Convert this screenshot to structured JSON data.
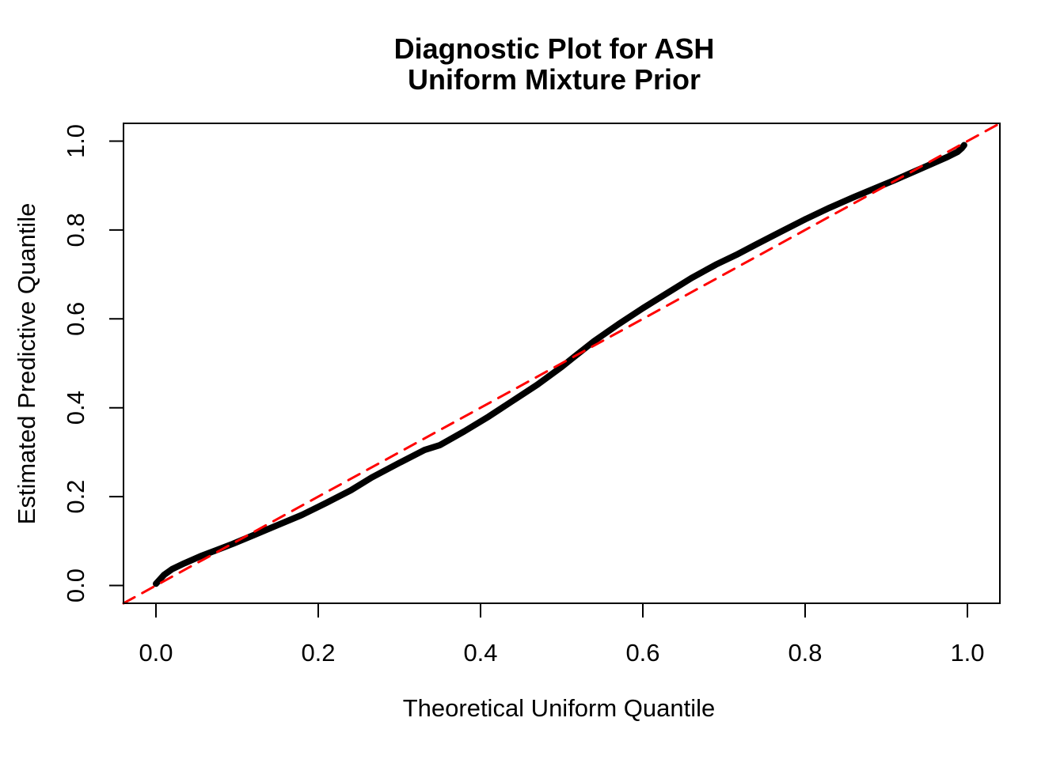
{
  "chart_data": {
    "type": "line",
    "title_lines": [
      "Diagnostic Plot for ASH",
      "Uniform Mixture Prior"
    ],
    "x_axis": {
      "label": "Theoretical Uniform Quantile",
      "tick_values": [
        0.0,
        0.2,
        0.4,
        0.6,
        0.8,
        1.0
      ],
      "tick_labels": [
        "0.0",
        "0.2",
        "0.4",
        "0.6",
        "0.8",
        "1.0"
      ],
      "range": [
        -0.04,
        1.04
      ]
    },
    "y_axis": {
      "label": "Estimated Predictive Quantile",
      "tick_values": [
        0.0,
        0.2,
        0.4,
        0.6,
        0.8,
        1.0
      ],
      "tick_labels": [
        "0.0",
        "0.2",
        "0.4",
        "0.6",
        "0.8",
        "1.0"
      ],
      "range": [
        -0.04,
        1.04
      ]
    },
    "grid": false,
    "legend": "none",
    "colors": {
      "background": "#ffffff",
      "axis": "#000000",
      "quantile_curve": "#000000",
      "reference_line": "#ff0000"
    },
    "series": [
      {
        "name": "estimated-vs-theoretical-quantiles",
        "type": "point-curve",
        "color": "#000000",
        "points": [
          [
            0.0,
            0.004
          ],
          [
            0.004,
            0.012
          ],
          [
            0.01,
            0.024
          ],
          [
            0.02,
            0.037
          ],
          [
            0.035,
            0.05
          ],
          [
            0.055,
            0.066
          ],
          [
            0.075,
            0.08
          ],
          [
            0.095,
            0.094
          ],
          [
            0.12,
            0.113
          ],
          [
            0.15,
            0.136
          ],
          [
            0.18,
            0.159
          ],
          [
            0.21,
            0.186
          ],
          [
            0.24,
            0.214
          ],
          [
            0.266,
            0.243
          ],
          [
            0.3,
            0.276
          ],
          [
            0.331,
            0.305
          ],
          [
            0.35,
            0.316
          ],
          [
            0.38,
            0.347
          ],
          [
            0.41,
            0.38
          ],
          [
            0.44,
            0.416
          ],
          [
            0.47,
            0.452
          ],
          [
            0.5,
            0.492
          ],
          [
            0.515,
            0.514
          ],
          [
            0.54,
            0.55
          ],
          [
            0.57,
            0.588
          ],
          [
            0.6,
            0.624
          ],
          [
            0.63,
            0.658
          ],
          [
            0.66,
            0.692
          ],
          [
            0.69,
            0.722
          ],
          [
            0.715,
            0.744
          ],
          [
            0.74,
            0.768
          ],
          [
            0.77,
            0.796
          ],
          [
            0.8,
            0.824
          ],
          [
            0.83,
            0.85
          ],
          [
            0.86,
            0.874
          ],
          [
            0.89,
            0.897
          ],
          [
            0.91,
            0.912
          ],
          [
            0.935,
            0.932
          ],
          [
            0.955,
            0.948
          ],
          [
            0.975,
            0.964
          ],
          [
            0.988,
            0.976
          ],
          [
            0.993,
            0.984
          ],
          [
            0.996,
            0.991
          ]
        ]
      },
      {
        "name": "identity-line-y-equals-x",
        "type": "line",
        "style": "dashed",
        "color": "#ff0000",
        "points": [
          [
            -0.04,
            -0.04
          ],
          [
            1.04,
            1.04
          ]
        ]
      }
    ]
  }
}
